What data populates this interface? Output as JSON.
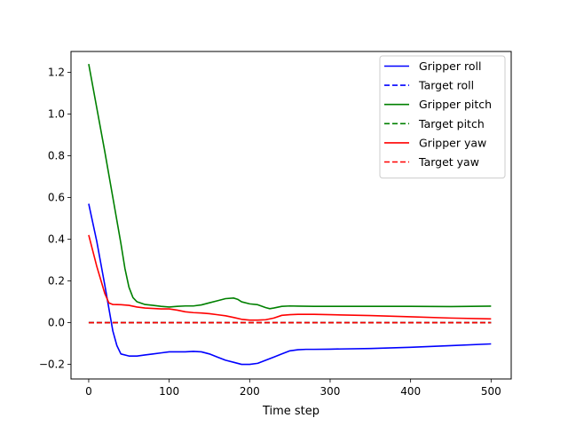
{
  "chart_data": {
    "type": "line",
    "title": "",
    "xlabel": "Time step",
    "ylabel": "",
    "xlim": [
      -22,
      525
    ],
    "ylim": [
      -0.27,
      1.3
    ],
    "xticks": [
      0,
      100,
      200,
      300,
      400,
      500
    ],
    "yticks": [
      -0.2,
      0.0,
      0.2,
      0.4,
      0.6,
      0.8,
      1.0,
      1.2
    ],
    "ytick_labels": [
      "−0.2",
      "0.0",
      "0.2",
      "0.4",
      "0.6",
      "0.8",
      "1.0",
      "1.2"
    ],
    "legend_position": "top-right",
    "series": [
      {
        "name": "Gripper roll",
        "color": "#0000ff",
        "style": "solid",
        "x": [
          0,
          10,
          20,
          30,
          35,
          40,
          50,
          60,
          70,
          80,
          90,
          100,
          110,
          120,
          130,
          140,
          150,
          160,
          170,
          180,
          190,
          200,
          210,
          220,
          230,
          240,
          250,
          260,
          270,
          280,
          300,
          350,
          400,
          450,
          500
        ],
        "y": [
          0.57,
          0.39,
          0.18,
          -0.04,
          -0.11,
          -0.15,
          -0.16,
          -0.16,
          -0.155,
          -0.15,
          -0.145,
          -0.14,
          -0.14,
          -0.14,
          -0.138,
          -0.14,
          -0.15,
          -0.165,
          -0.18,
          -0.19,
          -0.2,
          -0.2,
          -0.195,
          -0.18,
          -0.165,
          -0.15,
          -0.135,
          -0.13,
          -0.128,
          -0.128,
          -0.127,
          -0.124,
          -0.118,
          -0.11,
          -0.102
        ]
      },
      {
        "name": "Target roll",
        "color": "#0000ff",
        "style": "dashed",
        "x": [
          0,
          500
        ],
        "y": [
          0.0,
          0.0
        ]
      },
      {
        "name": "Gripper pitch",
        "color": "#008000",
        "style": "solid",
        "x": [
          0,
          10,
          20,
          30,
          40,
          45,
          50,
          55,
          60,
          70,
          80,
          90,
          100,
          110,
          120,
          130,
          140,
          150,
          160,
          170,
          180,
          185,
          190,
          200,
          210,
          220,
          225,
          230,
          240,
          250,
          260,
          280,
          300,
          350,
          400,
          450,
          500
        ],
        "y": [
          1.24,
          1.03,
          0.82,
          0.6,
          0.38,
          0.26,
          0.17,
          0.12,
          0.1,
          0.087,
          0.083,
          0.078,
          0.075,
          0.078,
          0.08,
          0.08,
          0.085,
          0.095,
          0.105,
          0.115,
          0.118,
          0.112,
          0.1,
          0.09,
          0.086,
          0.072,
          0.067,
          0.07,
          0.078,
          0.08,
          0.079,
          0.078,
          0.078,
          0.078,
          0.078,
          0.077,
          0.079
        ]
      },
      {
        "name": "Target pitch",
        "color": "#008000",
        "style": "dashed",
        "x": [
          0,
          500
        ],
        "y": [
          0.0,
          0.0
        ]
      },
      {
        "name": "Gripper yaw",
        "color": "#ff0000",
        "style": "solid",
        "x": [
          0,
          10,
          20,
          25,
          30,
          40,
          50,
          60,
          70,
          80,
          90,
          100,
          110,
          120,
          130,
          140,
          150,
          160,
          170,
          180,
          190,
          200,
          210,
          220,
          230,
          240,
          250,
          260,
          280,
          300,
          350,
          400,
          450,
          500
        ],
        "y": [
          0.42,
          0.27,
          0.14,
          0.095,
          0.087,
          0.086,
          0.083,
          0.075,
          0.07,
          0.068,
          0.066,
          0.066,
          0.06,
          0.052,
          0.048,
          0.046,
          0.043,
          0.038,
          0.033,
          0.025,
          0.016,
          0.012,
          0.012,
          0.014,
          0.022,
          0.035,
          0.038,
          0.04,
          0.04,
          0.038,
          0.034,
          0.028,
          0.022,
          0.018
        ]
      },
      {
        "name": "Target yaw",
        "color": "#ff0000",
        "style": "dashed",
        "x": [
          0,
          500
        ],
        "y": [
          0.0,
          0.0
        ]
      }
    ]
  }
}
